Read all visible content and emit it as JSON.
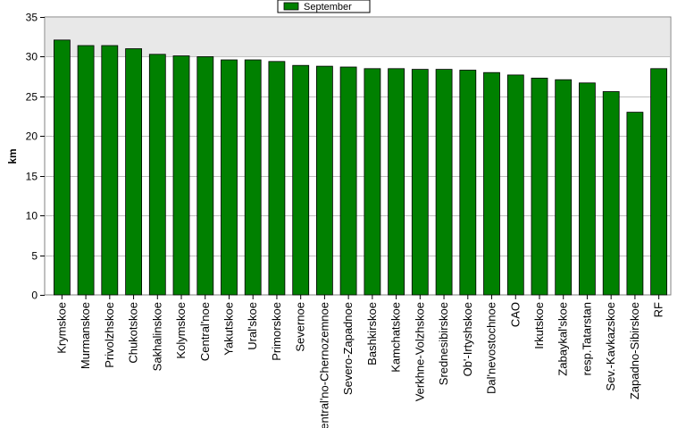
{
  "chart_data": {
    "type": "bar",
    "ylabel": "km",
    "ylim": [
      0,
      35
    ],
    "yticks": [
      0,
      5,
      10,
      15,
      20,
      25,
      30,
      35
    ],
    "grid": true,
    "legend_position": "top",
    "series": [
      {
        "name": "September",
        "color": "#008000",
        "values": [
          32.1,
          31.4,
          31.4,
          31.0,
          30.3,
          30.1,
          30.0,
          29.6,
          29.6,
          29.4,
          28.9,
          28.8,
          28.7,
          28.5,
          28.5,
          28.4,
          28.4,
          28.3,
          28.0,
          27.7,
          27.3,
          27.1,
          26.7,
          25.6,
          23.0,
          28.5
        ]
      }
    ],
    "categories": [
      "Krymskoe",
      "Murmanskoe",
      "Privolzhskoe",
      "Chukotskoe",
      "Sakhalinskoe",
      "Kolymskoe",
      "Central'noe",
      "Yakutskoe",
      "Ural'skoe",
      "Primorskoe",
      "Severnoe",
      "Central'no-Chernozemnoe",
      "Severo-Zapadnoe",
      "Bashkirskoe",
      "Kamchatskoe",
      "Verkhne-Volzhskoe",
      "Srednesibirskoe",
      "Ob'-Irtyshskoe",
      "Dal'nevostochnoe",
      "CAO",
      "Irkutskoe",
      "Zabaykal'skoe",
      "resp.Tatarstan",
      "Sev.-Kavkazskoe",
      "Zapadno-Sibirskoe",
      "RF"
    ]
  }
}
